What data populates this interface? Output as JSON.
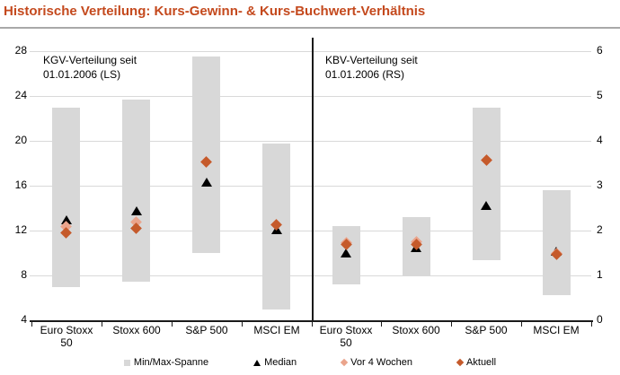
{
  "title": "Historische Verteilung: Kurs-Gewinn- & Kurs-Buchwert-Verhältnis",
  "colors": {
    "title": "#c4491d",
    "title_rule": "#a8a8a8",
    "bar": "#d8d8d8",
    "gridline": "#d9d9d9",
    "axis": "#1a1a1a",
    "median": "#000000",
    "vor_4_wochen": "#eaa48c",
    "aktuell": "#c55a2b"
  },
  "legend": [
    {
      "label": "Min/Max-Spanne",
      "marker": "square",
      "color": "#d8d8d8"
    },
    {
      "label": "Median",
      "marker": "triangle",
      "color": "#000000"
    },
    {
      "label": "Vor 4 Wochen",
      "marker": "diamond",
      "color": "#eaa48c"
    },
    {
      "label": "Aktuell",
      "marker": "diamond",
      "color": "#c55a2b"
    }
  ],
  "chart_data": [
    {
      "type": "bar",
      "subtype": "min-max-range-with-markers",
      "panel_title_lines": [
        "KGV-Verteilung seit",
        "01.01.2006 (LS)"
      ],
      "axis_side": "left",
      "ylim": [
        4,
        28
      ],
      "yticks": [
        4,
        8,
        12,
        16,
        20,
        24,
        28
      ],
      "grid": true,
      "categories": [
        "Euro Stoxx 50",
        "Stoxx 600",
        "S&P 500",
        "MSCI EM"
      ],
      "series": [
        {
          "name": "Min/Max-Spanne",
          "role": "range",
          "min": [
            7.0,
            7.5,
            10.0,
            5.0
          ],
          "max": [
            23.0,
            23.7,
            27.5,
            19.8
          ]
        },
        {
          "name": "Median",
          "role": "marker",
          "values": [
            13.0,
            13.8,
            16.3,
            12.1
          ]
        },
        {
          "name": "Vor 4 Wochen",
          "role": "marker",
          "values": [
            12.4,
            12.8,
            18.1,
            12.5
          ]
        },
        {
          "name": "Aktuell",
          "role": "marker",
          "values": [
            11.8,
            12.2,
            18.1,
            12.5
          ]
        }
      ]
    },
    {
      "type": "bar",
      "subtype": "min-max-range-with-markers",
      "panel_title_lines": [
        "KBV-Verteilung seit",
        "01.01.2006 (RS)"
      ],
      "axis_side": "right",
      "ylim": [
        0,
        6
      ],
      "yticks": [
        0,
        1,
        2,
        3,
        4,
        5,
        6
      ],
      "grid": true,
      "categories": [
        "Euro Stoxx 50",
        "Stoxx 600",
        "S&P 500",
        "MSCI EM"
      ],
      "series": [
        {
          "name": "Min/Max-Spanne",
          "role": "range",
          "min": [
            0.8,
            1.0,
            1.35,
            0.55
          ],
          "max": [
            2.1,
            2.3,
            4.75,
            2.9
          ]
        },
        {
          "name": "Median",
          "role": "marker",
          "values": [
            1.5,
            1.62,
            2.57,
            1.55
          ]
        },
        {
          "name": "Vor 4 Wochen",
          "role": "marker",
          "values": [
            1.73,
            1.75,
            3.58,
            1.5
          ]
        },
        {
          "name": "Aktuell",
          "role": "marker",
          "values": [
            1.7,
            1.7,
            3.58,
            1.48
          ]
        }
      ]
    }
  ]
}
